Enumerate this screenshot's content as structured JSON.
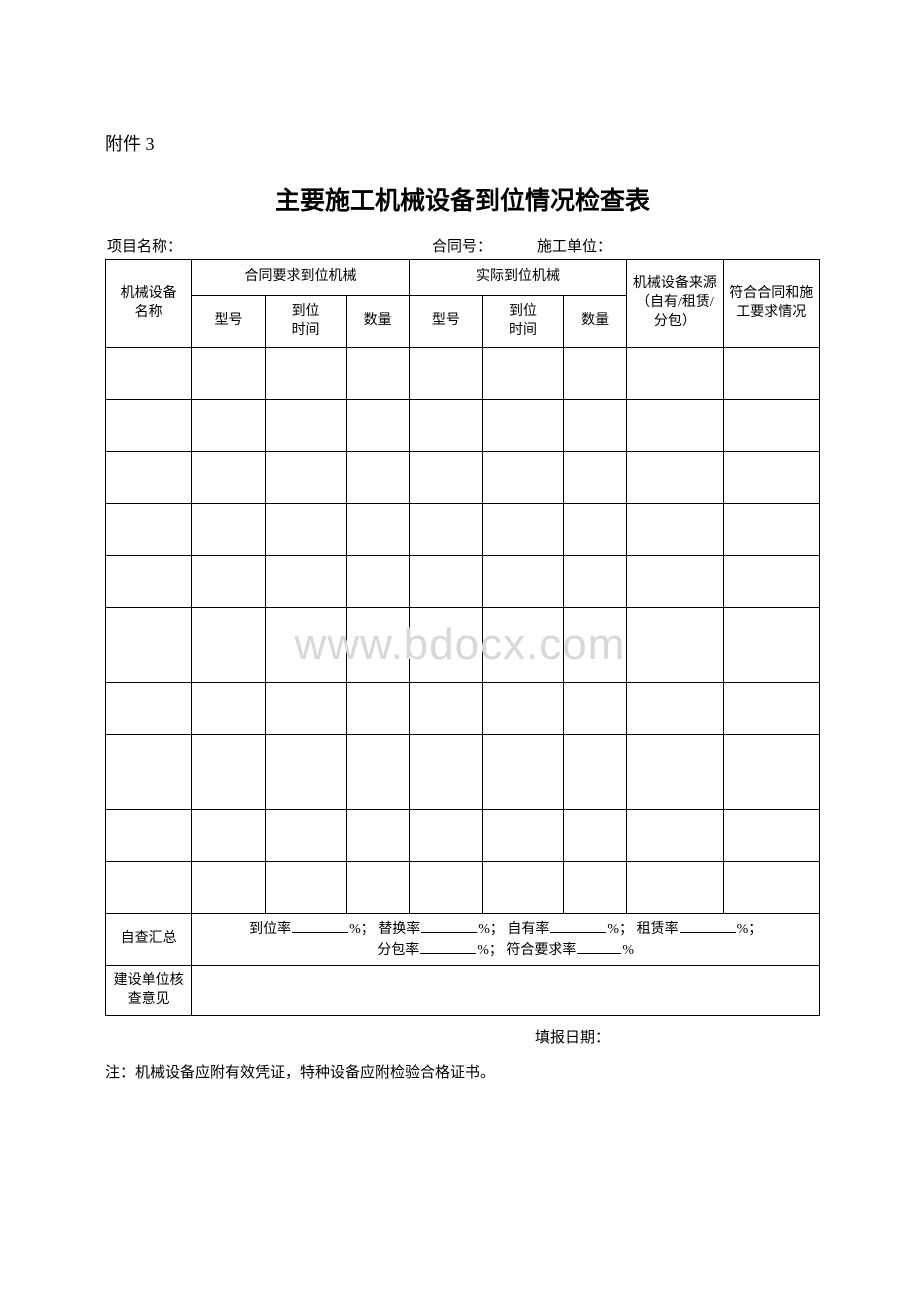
{
  "attachment_label": "附件 3",
  "title": "主要施工机械设备到位情况检查表",
  "meta": {
    "project_label": "项目名称：",
    "contract_label": "合同号：",
    "unit_label": "施工单位："
  },
  "headers": {
    "name": "机械设备\n名称",
    "contract_group": "合同要求到位机械",
    "actual_group": "实际到位机械",
    "source": "机械设备来源（自有/租赁/分包）",
    "conform": "符合合同和施工要求情况",
    "model": "型号",
    "time": "到位\n时间",
    "qty": "数量"
  },
  "summary": {
    "label": "自查汇总",
    "items": {
      "arrival_rate": "到位率",
      "replace_rate": "替换率",
      "own_rate": "自有率",
      "rent_rate": "租赁率",
      "subcontract_rate": "分包率",
      "conform_rate": "符合要求率"
    },
    "pct": "%",
    "sep": "；"
  },
  "opinion_label": "建设单位核查意见",
  "footer_date_label": "填报日期：",
  "footnote": "注：机械设备应附有效凭证，特种设备应附检验合格证书。",
  "watermark": "www.bdocx.com",
  "layout": {
    "data_row_count": 10,
    "tall_rows": [
      5,
      7
    ],
    "colors": {
      "text": "#000000",
      "border": "#000000",
      "background": "#ffffff",
      "watermark": "#d8d8d8"
    },
    "fonts": {
      "body_pt": 15,
      "title_pt": 25,
      "table_pt": 14
    }
  }
}
